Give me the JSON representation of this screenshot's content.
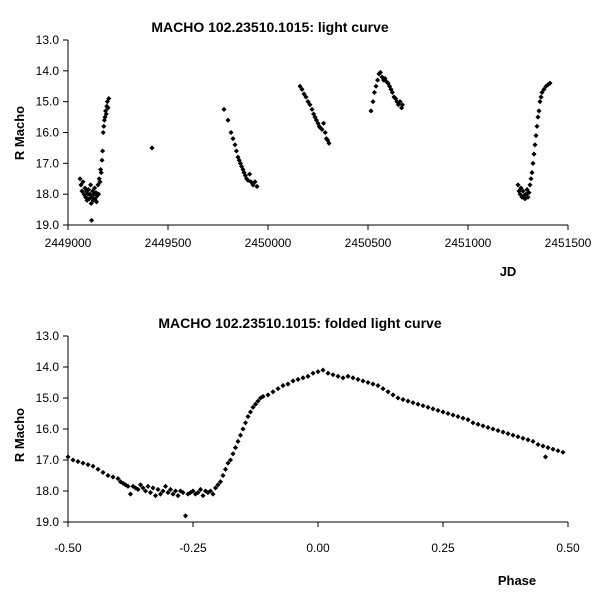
{
  "chart_data": [
    {
      "type": "scatter",
      "title": "MACHO 102.23510.1015: light curve",
      "xlabel": "JD",
      "ylabel": "R Macho",
      "xlim": [
        2449000,
        2451500
      ],
      "ylim": [
        13.0,
        19.0
      ],
      "y_inverted": true,
      "xticks": [
        "2449000",
        "2449500",
        "2450000",
        "2450500",
        "2451000",
        "2451500"
      ],
      "yticks": [
        "13.0",
        "14.0",
        "15.0",
        "16.0",
        "17.0",
        "18.0",
        "19.0"
      ],
      "marker_color": "#000000",
      "grid": false,
      "legend": "none",
      "points": [
        [
          2449060,
          17.5
        ],
        [
          2449065,
          17.7
        ],
        [
          2449070,
          17.9
        ],
        [
          2449075,
          17.6
        ],
        [
          2449080,
          18.0
        ],
        [
          2449085,
          17.8
        ],
        [
          2449088,
          18.1
        ],
        [
          2449092,
          17.9
        ],
        [
          2449095,
          18.2
        ],
        [
          2449100,
          18.0
        ],
        [
          2449103,
          17.85
        ],
        [
          2449106,
          18.15
        ],
        [
          2449110,
          18.0
        ],
        [
          2449113,
          17.7
        ],
        [
          2449116,
          18.3
        ],
        [
          2449118,
          18.85
        ],
        [
          2449120,
          18.1
        ],
        [
          2449123,
          17.9
        ],
        [
          2449126,
          18.2
        ],
        [
          2449130,
          18.0
        ],
        [
          2449133,
          17.8
        ],
        [
          2449136,
          18.15
        ],
        [
          2449140,
          17.95
        ],
        [
          2449143,
          18.25
        ],
        [
          2449146,
          18.05
        ],
        [
          2449150,
          17.7
        ],
        [
          2449153,
          18.0
        ],
        [
          2449156,
          17.5
        ],
        [
          2449160,
          17.6
        ],
        [
          2449163,
          17.2
        ],
        [
          2449166,
          17.3
        ],
        [
          2449170,
          16.9
        ],
        [
          2449173,
          16.6
        ],
        [
          2449176,
          16.0
        ],
        [
          2449179,
          15.8
        ],
        [
          2449182,
          15.6
        ],
        [
          2449185,
          15.5
        ],
        [
          2449188,
          15.3
        ],
        [
          2449191,
          15.4
        ],
        [
          2449194,
          15.15
        ],
        [
          2449197,
          15.0
        ],
        [
          2449200,
          15.2
        ],
        [
          2449204,
          14.9
        ],
        [
          2449420,
          16.5
        ],
        [
          2449780,
          15.25
        ],
        [
          2449800,
          15.6
        ],
        [
          2449815,
          16.0
        ],
        [
          2449825,
          16.2
        ],
        [
          2449835,
          16.4
        ],
        [
          2449842,
          16.6
        ],
        [
          2449850,
          16.8
        ],
        [
          2449856,
          16.9
        ],
        [
          2449862,
          17.0
        ],
        [
          2449868,
          17.1
        ],
        [
          2449875,
          17.2
        ],
        [
          2449880,
          17.3
        ],
        [
          2449887,
          17.4
        ],
        [
          2449893,
          17.5
        ],
        [
          2449900,
          17.55
        ],
        [
          2449908,
          17.35
        ],
        [
          2449915,
          17.6
        ],
        [
          2449925,
          17.7
        ],
        [
          2449935,
          17.6
        ],
        [
          2449945,
          17.75
        ],
        [
          2450160,
          14.5
        ],
        [
          2450170,
          14.6
        ],
        [
          2450180,
          14.75
        ],
        [
          2450190,
          14.85
        ],
        [
          2450200,
          15.0
        ],
        [
          2450210,
          15.1
        ],
        [
          2450220,
          15.25
        ],
        [
          2450228,
          15.4
        ],
        [
          2450235,
          15.5
        ],
        [
          2450242,
          15.6
        ],
        [
          2450250,
          15.7
        ],
        [
          2450256,
          15.8
        ],
        [
          2450262,
          15.85
        ],
        [
          2450270,
          15.9
        ],
        [
          2450278,
          15.7
        ],
        [
          2450286,
          16.0
        ],
        [
          2450292,
          16.2
        ],
        [
          2450298,
          16.25
        ],
        [
          2450305,
          16.35
        ],
        [
          2450515,
          15.3
        ],
        [
          2450525,
          15.0
        ],
        [
          2450532,
          14.7
        ],
        [
          2450540,
          14.5
        ],
        [
          2450548,
          14.3
        ],
        [
          2450555,
          14.1
        ],
        [
          2450562,
          14.05
        ],
        [
          2450570,
          14.2
        ],
        [
          2450578,
          14.3
        ],
        [
          2450585,
          14.25
        ],
        [
          2450592,
          14.35
        ],
        [
          2450600,
          14.4
        ],
        [
          2450608,
          14.5
        ],
        [
          2450615,
          14.6
        ],
        [
          2450622,
          14.7
        ],
        [
          2450630,
          14.85
        ],
        [
          2450638,
          14.9
        ],
        [
          2450645,
          15.0
        ],
        [
          2450652,
          15.1
        ],
        [
          2450660,
          15.0
        ],
        [
          2450668,
          15.2
        ],
        [
          2450672,
          15.1
        ],
        [
          2451250,
          17.7
        ],
        [
          2451255,
          17.9
        ],
        [
          2451260,
          18.0
        ],
        [
          2451265,
          17.8
        ],
        [
          2451270,
          18.1
        ],
        [
          2451275,
          17.9
        ],
        [
          2451280,
          18.05
        ],
        [
          2451285,
          18.15
        ],
        [
          2451290,
          18.0
        ],
        [
          2451295,
          17.85
        ],
        [
          2451300,
          18.1
        ],
        [
          2451305,
          17.95
        ],
        [
          2451310,
          17.7
        ],
        [
          2451315,
          17.5
        ],
        [
          2451320,
          17.3
        ],
        [
          2451325,
          17.0
        ],
        [
          2451330,
          16.7
        ],
        [
          2451335,
          16.4
        ],
        [
          2451340,
          16.1
        ],
        [
          2451345,
          15.8
        ],
        [
          2451350,
          15.5
        ],
        [
          2451355,
          15.3
        ],
        [
          2451360,
          15.0
        ],
        [
          2451365,
          14.85
        ],
        [
          2451370,
          14.7
        ],
        [
          2451380,
          14.6
        ],
        [
          2451390,
          14.5
        ],
        [
          2451400,
          14.45
        ],
        [
          2451410,
          14.4
        ]
      ]
    },
    {
      "type": "scatter",
      "title": "MACHO 102.23510.1015: folded light curve",
      "xlabel": "Phase",
      "ylabel": "R Macho",
      "xlim": [
        -0.5,
        0.5
      ],
      "ylim": [
        13.0,
        19.0
      ],
      "y_inverted": true,
      "xticks": [
        "-0.50",
        "-0.25",
        "0.00",
        "0.25",
        "0.50"
      ],
      "yticks": [
        "13.0",
        "14.0",
        "15.0",
        "16.0",
        "17.0",
        "18.0",
        "19.0"
      ],
      "marker_color": "#000000",
      "grid": false,
      "legend": "none",
      "points": [
        [
          -0.5,
          16.9
        ],
        [
          -0.49,
          17.0
        ],
        [
          -0.48,
          17.05
        ],
        [
          -0.47,
          17.1
        ],
        [
          -0.46,
          17.15
        ],
        [
          -0.45,
          17.2
        ],
        [
          -0.44,
          17.3
        ],
        [
          -0.43,
          17.4
        ],
        [
          -0.42,
          17.5
        ],
        [
          -0.41,
          17.55
        ],
        [
          -0.4,
          17.6
        ],
        [
          -0.395,
          17.7
        ],
        [
          -0.39,
          17.75
        ],
        [
          -0.385,
          17.8
        ],
        [
          -0.38,
          17.85
        ],
        [
          -0.375,
          18.1
        ],
        [
          -0.37,
          17.85
        ],
        [
          -0.365,
          17.9
        ],
        [
          -0.36,
          17.95
        ],
        [
          -0.355,
          17.8
        ],
        [
          -0.35,
          17.9
        ],
        [
          -0.345,
          18.0
        ],
        [
          -0.34,
          17.85
        ],
        [
          -0.335,
          18.05
        ],
        [
          -0.33,
          17.9
        ],
        [
          -0.325,
          18.15
        ],
        [
          -0.32,
          17.95
        ],
        [
          -0.315,
          18.1
        ],
        [
          -0.31,
          18.0
        ],
        [
          -0.305,
          17.85
        ],
        [
          -0.3,
          18.05
        ],
        [
          -0.295,
          17.95
        ],
        [
          -0.29,
          18.1
        ],
        [
          -0.285,
          18.0
        ],
        [
          -0.28,
          18.15
        ],
        [
          -0.275,
          18.0
        ],
        [
          -0.27,
          18.05
        ],
        [
          -0.265,
          18.8
        ],
        [
          -0.26,
          18.1
        ],
        [
          -0.255,
          18.05
        ],
        [
          -0.25,
          18.0
        ],
        [
          -0.245,
          18.1
        ],
        [
          -0.24,
          18.05
        ],
        [
          -0.235,
          17.95
        ],
        [
          -0.23,
          18.15
        ],
        [
          -0.225,
          18.0
        ],
        [
          -0.22,
          18.05
        ],
        [
          -0.215,
          18.0
        ],
        [
          -0.21,
          18.1
        ],
        [
          -0.205,
          17.9
        ],
        [
          -0.2,
          17.8
        ],
        [
          -0.195,
          17.7
        ],
        [
          -0.19,
          17.5
        ],
        [
          -0.185,
          17.3
        ],
        [
          -0.18,
          17.1
        ],
        [
          -0.175,
          17.0
        ],
        [
          -0.17,
          16.8
        ],
        [
          -0.165,
          16.6
        ],
        [
          -0.16,
          16.4
        ],
        [
          -0.155,
          16.2
        ],
        [
          -0.15,
          16.0
        ],
        [
          -0.145,
          15.8
        ],
        [
          -0.14,
          15.6
        ],
        [
          -0.135,
          15.45
        ],
        [
          -0.13,
          15.3
        ],
        [
          -0.125,
          15.2
        ],
        [
          -0.12,
          15.1
        ],
        [
          -0.115,
          15.0
        ],
        [
          -0.11,
          14.95
        ],
        [
          -0.1,
          14.9
        ],
        [
          -0.09,
          14.8
        ],
        [
          -0.08,
          14.7
        ],
        [
          -0.07,
          14.6
        ],
        [
          -0.06,
          14.55
        ],
        [
          -0.05,
          14.45
        ],
        [
          -0.04,
          14.4
        ],
        [
          -0.03,
          14.35
        ],
        [
          -0.02,
          14.3
        ],
        [
          -0.01,
          14.2
        ],
        [
          0.0,
          14.15
        ],
        [
          0.01,
          14.1
        ],
        [
          0.02,
          14.2
        ],
        [
          0.03,
          14.25
        ],
        [
          0.04,
          14.3
        ],
        [
          0.05,
          14.35
        ],
        [
          0.06,
          14.3
        ],
        [
          0.07,
          14.35
        ],
        [
          0.08,
          14.4
        ],
        [
          0.09,
          14.45
        ],
        [
          0.1,
          14.5
        ],
        [
          0.11,
          14.55
        ],
        [
          0.12,
          14.6
        ],
        [
          0.13,
          14.7
        ],
        [
          0.14,
          14.8
        ],
        [
          0.15,
          14.9
        ],
        [
          0.16,
          15.0
        ],
        [
          0.17,
          15.05
        ],
        [
          0.18,
          15.1
        ],
        [
          0.19,
          15.15
        ],
        [
          0.2,
          15.2
        ],
        [
          0.21,
          15.25
        ],
        [
          0.22,
          15.3
        ],
        [
          0.23,
          15.35
        ],
        [
          0.24,
          15.4
        ],
        [
          0.25,
          15.45
        ],
        [
          0.26,
          15.5
        ],
        [
          0.27,
          15.55
        ],
        [
          0.28,
          15.6
        ],
        [
          0.29,
          15.65
        ],
        [
          0.3,
          15.7
        ],
        [
          0.31,
          15.8
        ],
        [
          0.32,
          15.85
        ],
        [
          0.33,
          15.9
        ],
        [
          0.34,
          15.95
        ],
        [
          0.35,
          16.0
        ],
        [
          0.36,
          16.05
        ],
        [
          0.37,
          16.1
        ],
        [
          0.38,
          16.15
        ],
        [
          0.39,
          16.2
        ],
        [
          0.4,
          16.25
        ],
        [
          0.41,
          16.3
        ],
        [
          0.42,
          16.35
        ],
        [
          0.43,
          16.4
        ],
        [
          0.44,
          16.5
        ],
        [
          0.45,
          16.55
        ],
        [
          0.455,
          16.9
        ],
        [
          0.46,
          16.6
        ],
        [
          0.47,
          16.65
        ],
        [
          0.48,
          16.7
        ],
        [
          0.49,
          16.75
        ]
      ]
    }
  ]
}
